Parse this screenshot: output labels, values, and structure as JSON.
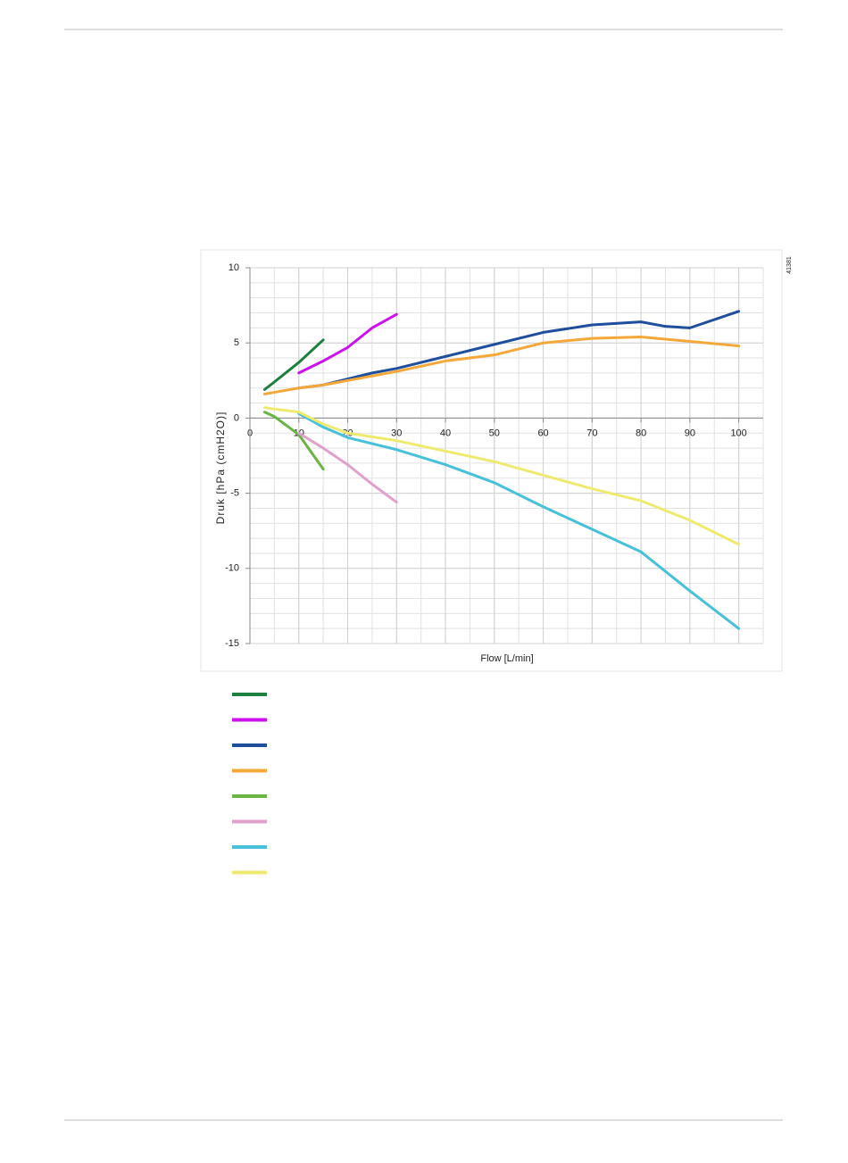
{
  "chart_data": {
    "type": "line",
    "figure_id": "41381",
    "x_label": "Flow [L/min]",
    "y_label": "Druk [hPa (cmH2O)]",
    "xlim": [
      0,
      105
    ],
    "xticks": [
      0,
      10,
      20,
      30,
      40,
      50,
      60,
      70,
      80,
      90,
      100
    ],
    "ylim": [
      -15,
      10
    ],
    "yticks": [
      -15,
      -10,
      -5,
      0,
      5,
      10
    ],
    "grid": true,
    "minor_grid": true,
    "series": [
      {
        "color": "#1e8040",
        "x": [
          3,
          5,
          10,
          15
        ],
        "values": [
          1.9,
          2.4,
          3.7,
          5.2
        ]
      },
      {
        "color": "#cc11ee",
        "x": [
          10,
          15,
          20,
          25,
          30
        ],
        "values": [
          3.0,
          3.8,
          4.7,
          6.0,
          6.9
        ]
      },
      {
        "color": "#1f4e9c",
        "x": [
          10,
          15,
          20,
          25,
          30,
          40,
          50,
          60,
          70,
          80,
          85,
          90,
          100
        ],
        "values": [
          2.0,
          2.2,
          2.6,
          3.0,
          3.3,
          4.1,
          4.9,
          5.7,
          6.2,
          6.4,
          6.1,
          6.0,
          7.1
        ]
      },
      {
        "color": "#f5a83a",
        "x": [
          3,
          10,
          15,
          20,
          30,
          40,
          50,
          60,
          70,
          80,
          90,
          100
        ],
        "values": [
          1.6,
          2.0,
          2.2,
          2.5,
          3.1,
          3.8,
          4.2,
          5.0,
          5.3,
          5.4,
          5.1,
          4.8
        ]
      },
      {
        "color": "#6ab444",
        "x": [
          3,
          5,
          10,
          15
        ],
        "values": [
          0.4,
          0.1,
          -1.1,
          -3.4
        ]
      },
      {
        "color": "#e0a0cc",
        "x": [
          10,
          15,
          20,
          25,
          30
        ],
        "values": [
          -1.0,
          -2.0,
          -3.1,
          -4.4,
          -5.6
        ]
      },
      {
        "color": "#47c0da",
        "x": [
          10,
          15,
          20,
          25,
          30,
          40,
          50,
          60,
          70,
          80,
          90,
          100
        ],
        "values": [
          0.3,
          -0.6,
          -1.3,
          -1.7,
          -2.1,
          -3.1,
          -4.3,
          -5.9,
          -7.4,
          -8.9,
          -11.5,
          -14.0
        ]
      },
      {
        "color": "#eeea70",
        "x": [
          3,
          5,
          10,
          15,
          20,
          30,
          40,
          50,
          60,
          70,
          80,
          90,
          100
        ],
        "values": [
          0.7,
          0.6,
          0.4,
          -0.4,
          -1.0,
          -1.5,
          -2.2,
          -2.9,
          -3.8,
          -4.7,
          -5.5,
          -6.8,
          -8.4
        ]
      }
    ]
  }
}
